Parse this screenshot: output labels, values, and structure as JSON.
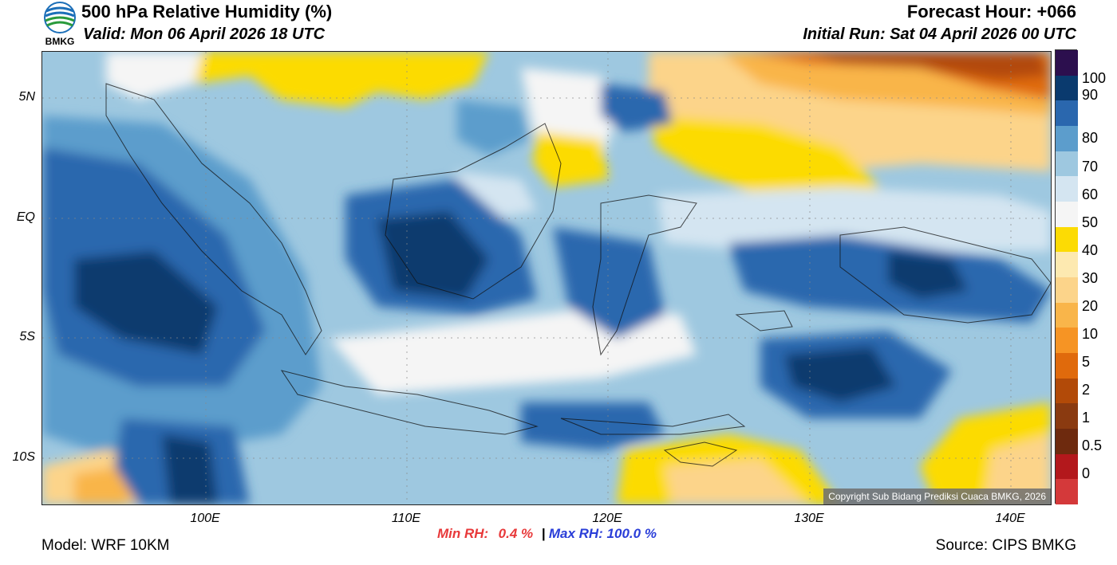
{
  "header": {
    "title": "500 hPa Relative Humidity (%)",
    "valid": "Valid: Mon 06 April 2026 18 UTC",
    "forecast_hour": "Forecast Hour: +066",
    "initial_run": "Initial Run: Sat 04 April 2026 00 UTC",
    "logo_text": "BMKG"
  },
  "map": {
    "lat_labels": [
      "5N",
      "EQ",
      "5S",
      "10S"
    ],
    "lon_labels": [
      "100E",
      "110E",
      "120E",
      "130E",
      "140E"
    ],
    "copyright": "Copyright Sub Bidang Prediksi Cuaca BMKG, 2026"
  },
  "colorbar": {
    "labels": [
      "100",
      "90",
      "80",
      "70",
      "60",
      "50",
      "40",
      "30",
      "20",
      "10",
      "5",
      "2",
      "1",
      "0.5",
      "0"
    ],
    "colors": [
      "#d4393a",
      "#b3181c",
      "#6e2a0e",
      "#8a3a10",
      "#b24a08",
      "#e06a0c",
      "#f69424",
      "#f9b54a",
      "#fcd48a",
      "#fde9b0",
      "#fcdb04",
      "#f5f5f5",
      "#d4e5f1",
      "#9ec8e0",
      "#5c9dcc",
      "#2a67ae",
      "#0a3a6e",
      "#2c0f4e"
    ]
  },
  "stats": {
    "min_label": "Min RH:",
    "min_value": "0.4 %",
    "separator": "|",
    "max_text": "Max RH: 100.0 %"
  },
  "footer": {
    "model": "Model: WRF 10KM",
    "source": "Source: CIPS BMKG"
  }
}
